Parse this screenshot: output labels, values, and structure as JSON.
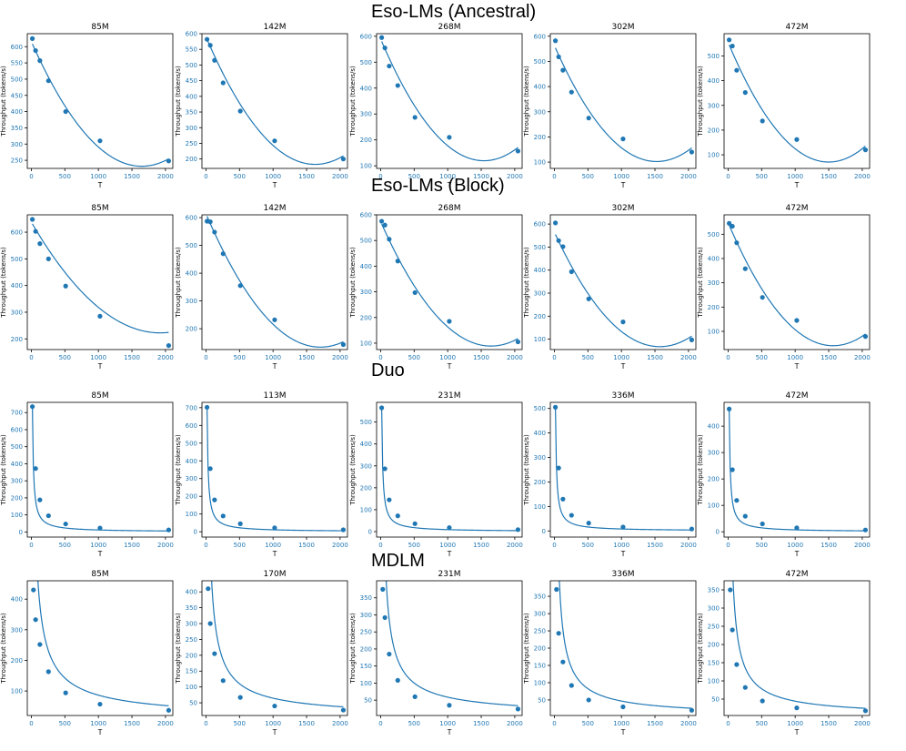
{
  "accent": "#1f77b4",
  "sections": [
    {
      "title": "Eso-LMs (Ancestral)"
    },
    {
      "title": "Eso-LMs (Block)"
    },
    {
      "title": "Duo"
    },
    {
      "title": "MDLM"
    }
  ],
  "chart_data": [
    {
      "type": "scatter",
      "section": "Eso-LMs (Ancestral)",
      "title": "85M",
      "xlabel": "T",
      "ylabel": "Throughput (tokens/s)",
      "xlim": [
        -60,
        2110
      ],
      "ylim": [
        225,
        640
      ],
      "xticks": [
        0,
        500,
        1000,
        1500,
        2000
      ],
      "yticks": [
        250,
        300,
        350,
        400,
        450,
        500,
        550,
        600
      ],
      "x": [
        16,
        64,
        128,
        256,
        512,
        1024,
        2048
      ],
      "y": [
        625,
        588,
        557,
        495,
        400,
        310,
        248
      ],
      "fit": {
        "kind": "quadratic",
        "coef": [
          0.0001418,
          -0.4669,
          616
        ]
      }
    },
    {
      "type": "scatter",
      "section": "Eso-LMs (Ancestral)",
      "title": "142M",
      "xlabel": "T",
      "ylabel": "Throughput (tokens/s)",
      "xlim": [
        -60,
        2110
      ],
      "ylim": [
        170,
        600
      ],
      "xticks": [
        0,
        500,
        1000,
        1500,
        2000
      ],
      "yticks": [
        200,
        250,
        300,
        350,
        400,
        450,
        500,
        550,
        600
      ],
      "x": [
        16,
        64,
        128,
        256,
        512,
        1024,
        2048
      ],
      "y": [
        582,
        563,
        515,
        443,
        353,
        258,
        200
      ],
      "fit": {
        "kind": "quadratic",
        "coef": [
          0.0001537,
          -0.5003,
          590
        ]
      }
    },
    {
      "type": "scatter",
      "section": "Eso-LMs (Ancestral)",
      "title": "268M",
      "xlabel": "T",
      "ylabel": "Throughput (tokens/s)",
      "xlim": [
        -60,
        2110
      ],
      "ylim": [
        90,
        610
      ],
      "xticks": [
        0,
        500,
        1000,
        1500,
        2000
      ],
      "yticks": [
        100,
        200,
        300,
        400,
        500,
        600
      ],
      "x": [
        16,
        64,
        128,
        256,
        512,
        1024,
        2048
      ],
      "y": [
        595,
        555,
        485,
        410,
        287,
        210,
        157
      ],
      "fit": {
        "kind": "quadratic",
        "coef": [
          0.0001983,
          -0.6108,
          590
        ]
      }
    },
    {
      "type": "scatter",
      "section": "Eso-LMs (Ancestral)",
      "title": "302M",
      "xlabel": "T",
      "ylabel": "Throughput (tokens/s)",
      "xlim": [
        -60,
        2110
      ],
      "ylim": [
        75,
        610
      ],
      "xticks": [
        0,
        500,
        1000,
        1500,
        2000
      ],
      "yticks": [
        100,
        200,
        300,
        400,
        500,
        600
      ],
      "x": [
        16,
        64,
        128,
        256,
        512,
        1024,
        2048
      ],
      "y": [
        582,
        518,
        465,
        378,
        275,
        192,
        140
      ],
      "fit": {
        "kind": "quadratic",
        "coef": [
          0.000198,
          -0.604,
          563
        ]
      }
    },
    {
      "type": "scatter",
      "section": "Eso-LMs (Ancestral)",
      "title": "472M",
      "xlabel": "T",
      "ylabel": "Throughput (tokens/s)",
      "xlim": [
        -60,
        2110
      ],
      "ylim": [
        45,
        590
      ],
      "xticks": [
        0,
        500,
        1000,
        1500,
        2000
      ],
      "yticks": [
        100,
        200,
        300,
        400,
        500
      ],
      "x": [
        16,
        64,
        128,
        256,
        512,
        1024,
        2048
      ],
      "y": [
        565,
        540,
        442,
        352,
        237,
        162,
        120
      ],
      "fit": {
        "kind": "quadratic",
        "coef": [
          0.0002152,
          -0.6456,
          555
        ]
      }
    },
    {
      "type": "scatter",
      "section": "Eso-LMs (Block)",
      "title": "85M",
      "xlabel": "T",
      "ylabel": "Throughput (tokens/s)",
      "xlim": [
        -60,
        2110
      ],
      "ylim": [
        160,
        665
      ],
      "xticks": [
        0,
        500,
        1000,
        1500,
        2000
      ],
      "yticks": [
        200,
        300,
        400,
        500,
        600
      ],
      "x": [
        16,
        64,
        128,
        256,
        512,
        1024,
        2048
      ],
      "y": [
        648,
        603,
        557,
        500,
        398,
        285,
        175
      ],
      "fit": {
        "kind": "quadratic",
        "coef": [
          0.0001124,
          -0.4322,
          638
        ]
      }
    },
    {
      "type": "scatter",
      "section": "Eso-LMs (Block)",
      "title": "142M",
      "xlabel": "T",
      "ylabel": "Throughput (tokens/s)",
      "xlim": [
        -60,
        2110
      ],
      "ylim": [
        125,
        610
      ],
      "xticks": [
        0,
        500,
        1000,
        1500,
        2000
      ],
      "yticks": [
        200,
        300,
        400,
        500,
        600
      ],
      "x": [
        16,
        64,
        128,
        256,
        512,
        1024,
        2048
      ],
      "y": [
        587,
        585,
        548,
        470,
        355,
        232,
        143
      ],
      "fit": {
        "kind": "quadratic",
        "coef": [
          0.000165,
          -0.563,
          614
        ]
      }
    },
    {
      "type": "scatter",
      "section": "Eso-LMs (Block)",
      "title": "268M",
      "xlabel": "T",
      "ylabel": "Throughput (tokens/s)",
      "xlim": [
        -60,
        2110
      ],
      "ylim": [
        75,
        600
      ],
      "xticks": [
        0,
        500,
        1000,
        1500,
        2000
      ],
      "yticks": [
        100,
        200,
        300,
        400,
        500,
        600
      ],
      "x": [
        16,
        64,
        128,
        256,
        512,
        1024,
        2048
      ],
      "y": [
        575,
        560,
        505,
        420,
        297,
        185,
        105
      ],
      "fit": {
        "kind": "quadratic",
        "coef": [
          0.0001793,
          -0.59,
          574
        ]
      }
    },
    {
      "type": "scatter",
      "section": "Eso-LMs (Block)",
      "title": "302M",
      "xlabel": "T",
      "ylabel": "Throughput (tokens/s)",
      "xlim": [
        -60,
        2110
      ],
      "ylim": [
        55,
        640
      ],
      "xticks": [
        0,
        500,
        1000,
        1500,
        2000
      ],
      "yticks": [
        100,
        200,
        300,
        400,
        500,
        600
      ],
      "x": [
        16,
        64,
        128,
        256,
        512,
        1024,
        2048
      ],
      "y": [
        605,
        528,
        502,
        393,
        275,
        175,
        97
      ],
      "fit": {
        "kind": "quadratic",
        "coef": [
          0.0002014,
          -0.633,
          565
        ]
      }
    },
    {
      "type": "scatter",
      "section": "Eso-LMs (Block)",
      "title": "472M",
      "xlabel": "T",
      "ylabel": "Throughput (tokens/s)",
      "xlim": [
        -60,
        2110
      ],
      "ylim": [
        25,
        580
      ],
      "xticks": [
        0,
        500,
        1000,
        1500,
        2000
      ],
      "yticks": [
        100,
        200,
        300,
        400,
        500
      ],
      "x": [
        16,
        64,
        128,
        256,
        512,
        1024,
        2048
      ],
      "y": [
        545,
        533,
        465,
        358,
        240,
        145,
        79
      ],
      "fit": {
        "kind": "quadratic",
        "coef": [
          0.000207,
          -0.648,
          548
        ]
      }
    },
    {
      "type": "scatter",
      "section": "Duo",
      "title": "85M",
      "xlabel": "T",
      "ylabel": "Throughput (tokens/s)",
      "xlim": [
        -60,
        2110
      ],
      "ylim": [
        -30,
        760
      ],
      "xticks": [
        0,
        500,
        1000,
        1500,
        2000
      ],
      "yticks": [
        0,
        100,
        200,
        300,
        400,
        500,
        600,
        700
      ],
      "x": [
        16,
        64,
        128,
        256,
        512,
        1024,
        2048
      ],
      "y": [
        735,
        372,
        188,
        95,
        47,
        23,
        12
      ],
      "fit": {
        "kind": "reciprocal",
        "coef": [
          11760
        ]
      }
    },
    {
      "type": "scatter",
      "section": "Duo",
      "title": "113M",
      "xlabel": "T",
      "ylabel": "Throughput (tokens/s)",
      "xlim": [
        -60,
        2110
      ],
      "ylim": [
        -30,
        730
      ],
      "xticks": [
        0,
        500,
        1000,
        1500,
        2000
      ],
      "yticks": [
        0,
        100,
        200,
        300,
        400,
        500,
        600,
        700
      ],
      "x": [
        16,
        64,
        128,
        256,
        512,
        1024,
        2048
      ],
      "y": [
        702,
        356,
        180,
        89,
        45,
        22,
        11
      ],
      "fit": {
        "kind": "reciprocal",
        "coef": [
          11232
        ]
      }
    },
    {
      "type": "scatter",
      "section": "Duo",
      "title": "231M",
      "xlabel": "T",
      "ylabel": "Throughput (tokens/s)",
      "xlim": [
        -60,
        2110
      ],
      "ylim": [
        -25,
        590
      ],
      "xticks": [
        0,
        500,
        1000,
        1500,
        2000
      ],
      "yticks": [
        0,
        100,
        200,
        300,
        400,
        500
      ],
      "x": [
        16,
        64,
        128,
        256,
        512,
        1024,
        2048
      ],
      "y": [
        565,
        287,
        145,
        72,
        36,
        18,
        9
      ],
      "fit": {
        "kind": "reciprocal",
        "coef": [
          9040
        ]
      }
    },
    {
      "type": "scatter",
      "section": "Duo",
      "title": "336M",
      "xlabel": "T",
      "ylabel": "Throughput (tokens/s)",
      "xlim": [
        -60,
        2110
      ],
      "ylim": [
        -25,
        525
      ],
      "xticks": [
        0,
        500,
        1000,
        1500,
        2000
      ],
      "yticks": [
        0,
        100,
        200,
        300,
        400,
        500
      ],
      "x": [
        16,
        64,
        128,
        256,
        512,
        1024,
        2048
      ],
      "y": [
        505,
        257,
        130,
        64,
        32,
        16,
        8
      ],
      "fit": {
        "kind": "reciprocal",
        "coef": [
          8080
        ]
      }
    },
    {
      "type": "scatter",
      "section": "Duo",
      "title": "472M",
      "xlabel": "T",
      "ylabel": "Throughput (tokens/s)",
      "xlim": [
        -60,
        2110
      ],
      "ylim": [
        -20,
        490
      ],
      "xticks": [
        0,
        500,
        1000,
        1500,
        2000
      ],
      "yticks": [
        0,
        100,
        200,
        300,
        400
      ],
      "x": [
        16,
        64,
        128,
        256,
        512,
        1024,
        2048
      ],
      "y": [
        465,
        235,
        119,
        59,
        30,
        15,
        7
      ],
      "fit": {
        "kind": "reciprocal",
        "coef": [
          7440
        ]
      }
    },
    {
      "type": "scatter",
      "section": "MDLM",
      "title": "85M",
      "xlabel": "T",
      "ylabel": "Throughput (tokens/s)",
      "xlim": [
        -60,
        2110
      ],
      "ylim": [
        20,
        460
      ],
      "xticks": [
        0,
        500,
        1000,
        1500,
        2000
      ],
      "yticks": [
        100,
        200,
        300,
        400
      ],
      "x": [
        32,
        64,
        128,
        256,
        512,
        1024,
        2048
      ],
      "y": [
        430,
        333,
        252,
        163,
        94,
        57,
        37
      ],
      "fit": {
        "kind": "power",
        "coef": [
          12500,
          -0.72
        ]
      }
    },
    {
      "type": "scatter",
      "section": "MDLM",
      "title": "170M",
      "xlabel": "T",
      "ylabel": "Throughput (tokens/s)",
      "xlim": [
        -60,
        2110
      ],
      "ylim": [
        10,
        435
      ],
      "xticks": [
        0,
        500,
        1000,
        1500,
        2000
      ],
      "yticks": [
        50,
        100,
        150,
        200,
        250,
        300,
        350,
        400
      ],
      "x": [
        32,
        64,
        128,
        256,
        512,
        1024,
        2048
      ],
      "y": [
        410,
        300,
        205,
        120,
        67,
        40,
        27
      ],
      "fit": {
        "kind": "power",
        "coef": [
          13200,
          -0.77
        ]
      }
    },
    {
      "type": "scatter",
      "section": "MDLM",
      "title": "231M",
      "xlabel": "T",
      "ylabel": "Throughput (tokens/s)",
      "xlim": [
        -60,
        2110
      ],
      "ylim": [
        5,
        400
      ],
      "xticks": [
        0,
        500,
        1000,
        1500,
        2000
      ],
      "yticks": [
        50,
        100,
        150,
        200,
        250,
        300,
        350
      ],
      "x": [
        32,
        64,
        128,
        256,
        512,
        1024,
        2048
      ],
      "y": [
        375,
        292,
        185,
        108,
        60,
        35,
        24
      ],
      "fit": {
        "kind": "power",
        "coef": [
          12000,
          -0.77
        ]
      }
    },
    {
      "type": "scatter",
      "section": "MDLM",
      "title": "336M",
      "xlabel": "T",
      "ylabel": "Throughput (tokens/s)",
      "xlim": [
        -60,
        2110
      ],
      "ylim": [
        5,
        395
      ],
      "xticks": [
        0,
        500,
        1000,
        1500,
        2000
      ],
      "yticks": [
        50,
        100,
        150,
        200,
        250,
        300,
        350
      ],
      "x": [
        32,
        64,
        128,
        256,
        512,
        1024,
        2048
      ],
      "y": [
        370,
        243,
        160,
        92,
        50,
        30,
        20
      ],
      "fit": {
        "kind": "power",
        "coef": [
          13500,
          -0.82
        ]
      }
    },
    {
      "type": "scatter",
      "section": "MDLM",
      "title": "472M",
      "xlabel": "T",
      "ylabel": "Throughput (tokens/s)",
      "xlim": [
        -60,
        2110
      ],
      "ylim": [
        5,
        375
      ],
      "xticks": [
        0,
        500,
        1000,
        1500,
        2000
      ],
      "yticks": [
        50,
        100,
        150,
        200,
        250,
        300,
        350
      ],
      "x": [
        32,
        64,
        128,
        256,
        512,
        1024,
        2048
      ],
      "y": [
        350,
        240,
        145,
        82,
        45,
        26,
        18
      ],
      "fit": {
        "kind": "power",
        "coef": [
          12800,
          -0.82
        ]
      }
    }
  ]
}
